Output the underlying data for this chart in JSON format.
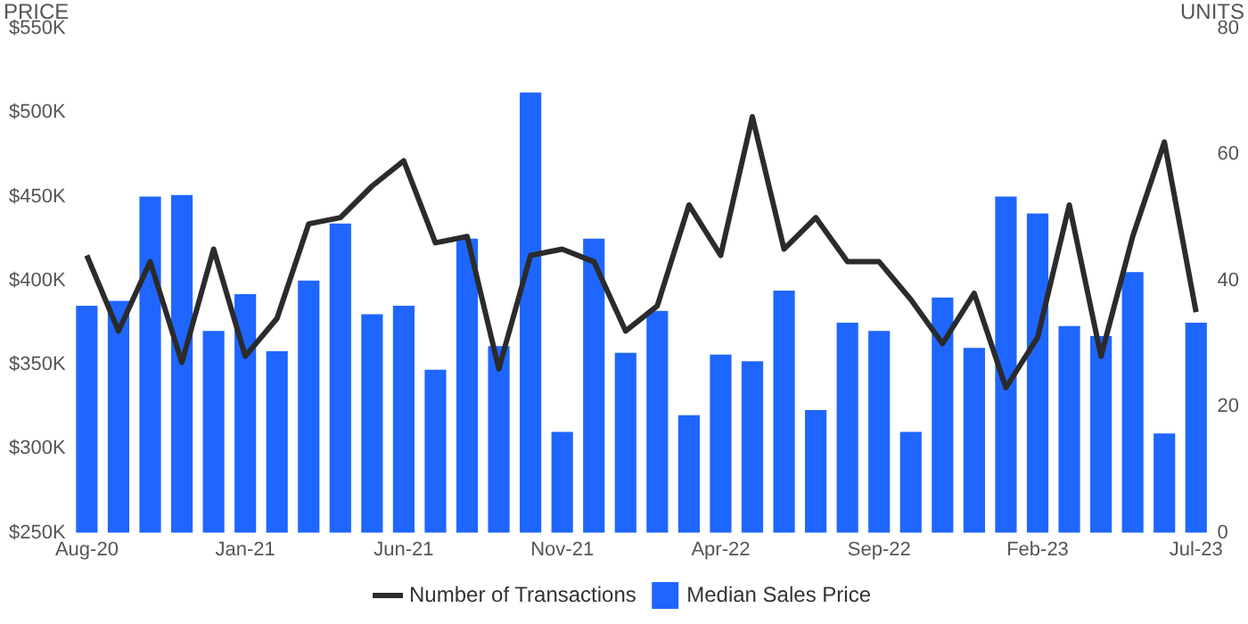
{
  "chart_data": {
    "type": "bar",
    "categories": [
      "Aug-20",
      null,
      null,
      null,
      null,
      "Jan-21",
      null,
      null,
      null,
      null,
      "Jun-21",
      null,
      null,
      null,
      null,
      "Nov-21",
      null,
      null,
      null,
      null,
      "Apr-22",
      null,
      null,
      null,
      null,
      "Sep-22",
      null,
      null,
      null,
      null,
      "Feb-23",
      null,
      null,
      null,
      null,
      "Jul-23"
    ],
    "series": [
      {
        "name": "Number of Transactions",
        "type": "line",
        "axis": "y2",
        "color": "#2b2b2b",
        "values": [
          44,
          32,
          43,
          27,
          45,
          28,
          34,
          49,
          50,
          55,
          59,
          46,
          47,
          26,
          44,
          45,
          43,
          32,
          36,
          52,
          44,
          66,
          45,
          50,
          43,
          43,
          37,
          30,
          38,
          23,
          31,
          52,
          28,
          47,
          62,
          35
        ]
      },
      {
        "name": "Median Sales Price",
        "type": "bar",
        "color": "#1f66ff",
        "values": [
          385000,
          388000,
          450000,
          451000,
          370000,
          392000,
          358000,
          400000,
          434000,
          380000,
          385000,
          347000,
          425000,
          361000,
          512000,
          310000,
          425000,
          357000,
          382000,
          320000,
          356000,
          352000,
          394000,
          323000,
          375000,
          370000,
          310000,
          390000,
          360000,
          450000,
          440000,
          373000,
          367000,
          405000,
          309000,
          375000
        ]
      }
    ],
    "ylabel": "PRICE",
    "y2label": "UNITS",
    "ylim": [
      250000,
      550000
    ],
    "yticks": [
      {
        "value": 250000,
        "label": "$250K"
      },
      {
        "value": 300000,
        "label": "$300K"
      },
      {
        "value": 350000,
        "label": "$350K"
      },
      {
        "value": 400000,
        "label": "$400K"
      },
      {
        "value": 450000,
        "label": "$450K"
      },
      {
        "value": 500000,
        "label": "$500K"
      },
      {
        "value": 550000,
        "label": "$550K"
      }
    ],
    "y2lim": [
      0,
      80
    ],
    "y2ticks": [
      0,
      20,
      40,
      60,
      80
    ],
    "marker": "none",
    "line_style": "solid",
    "legend": "bottom"
  }
}
